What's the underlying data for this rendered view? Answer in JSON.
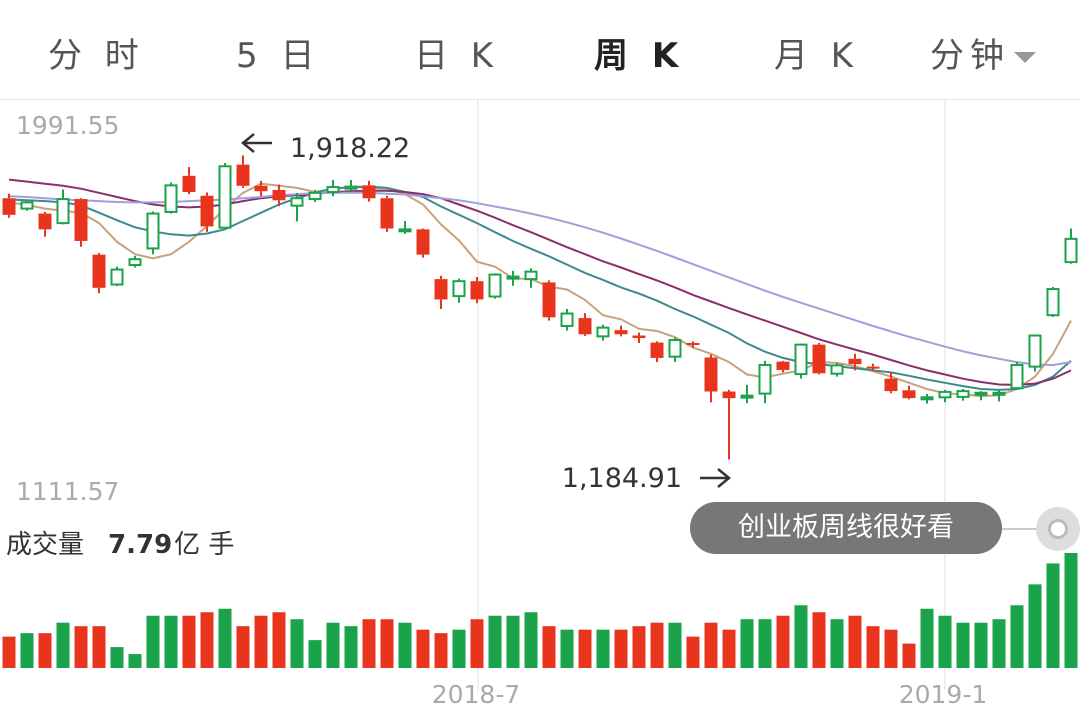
{
  "tabs": [
    {
      "label": "分 时",
      "active": false
    },
    {
      "label": "5 日",
      "active": false
    },
    {
      "label": "日 K",
      "active": false
    },
    {
      "label": "周 K",
      "active": true
    },
    {
      "label": "月 K",
      "active": false
    },
    {
      "label": "分钟",
      "active": false
    }
  ],
  "volume": {
    "label": "成交量",
    "value": "7.79",
    "unit": "亿 手"
  },
  "banner": {
    "text": "创业板周线很好看"
  },
  "colors": {
    "up": "#e8341c",
    "down": "#1aa34a",
    "ma5": "#c8a27a",
    "ma10": "#3d8a8e",
    "ma20": "#8b2f6b",
    "ma60": "#9f9fdc"
  },
  "chart_data": {
    "type": "candlestick",
    "y_max_label": "1991.55",
    "y_min_label": "1111.57",
    "ylim": [
      1111.57,
      1991.55
    ],
    "x_ticks": [
      {
        "label": "2018-7",
        "index": 26.5
      },
      {
        "label": "2019-1",
        "index": 52.5
      }
    ],
    "annotations": [
      {
        "text": "1,918.22",
        "index": 13,
        "value": 1918.22,
        "arrow": "left"
      },
      {
        "text": "1,184.91",
        "index": 40,
        "value": 1184.91,
        "arrow": "right"
      }
    ],
    "candles": [
      [
        1815,
        1775,
        1826,
        1768
      ],
      [
        1790,
        1805,
        1810,
        1785
      ],
      [
        1778,
        1740,
        1782,
        1722
      ],
      [
        1755,
        1813,
        1836,
        1752
      ],
      [
        1813,
        1712,
        1815,
        1698
      ],
      [
        1679,
        1599,
        1683,
        1586
      ],
      [
        1607,
        1643,
        1650,
        1603
      ],
      [
        1654,
        1668,
        1676,
        1648
      ],
      [
        1694,
        1778,
        1783,
        1680
      ],
      [
        1782,
        1846,
        1853,
        1778
      ],
      [
        1869,
        1830,
        1890,
        1825
      ],
      [
        1821,
        1747,
        1829,
        1734
      ],
      [
        1744,
        1892,
        1900,
        1740
      ],
      [
        1896,
        1845,
        1918.22,
        1840
      ],
      [
        1845,
        1832,
        1857,
        1820
      ],
      [
        1835,
        1810,
        1848,
        1796
      ],
      [
        1797,
        1815,
        1827,
        1759
      ],
      [
        1813,
        1828,
        1835,
        1806
      ],
      [
        1830,
        1842,
        1859,
        1820
      ],
      [
        1838,
        1843,
        1859,
        1833
      ],
      [
        1846,
        1815,
        1857,
        1807
      ],
      [
        1815,
        1742,
        1821,
        1734
      ],
      [
        1738,
        1740,
        1760,
        1729
      ],
      [
        1740,
        1679,
        1742,
        1672
      ],
      [
        1620,
        1571,
        1628,
        1548
      ],
      [
        1579,
        1615,
        1621,
        1563
      ],
      [
        1615,
        1571,
        1625,
        1562
      ],
      [
        1578,
        1631,
        1634,
        1573
      ],
      [
        1626,
        1626,
        1640,
        1604
      ],
      [
        1620,
        1638,
        1646,
        1599
      ],
      [
        1612,
        1528,
        1617,
        1520
      ],
      [
        1507,
        1537,
        1548,
        1496
      ],
      [
        1526,
        1487,
        1538,
        1483
      ],
      [
        1482,
        1503,
        1510,
        1472
      ],
      [
        1497,
        1487,
        1508,
        1482
      ],
      [
        1484,
        1478,
        1491,
        1466
      ],
      [
        1467,
        1430,
        1470,
        1420
      ],
      [
        1433,
        1473,
        1479,
        1420
      ],
      [
        1466,
        1465,
        1470,
        1455
      ],
      [
        1431,
        1349,
        1438,
        1323
      ],
      [
        1349,
        1333,
        1353,
        1184.91
      ],
      [
        1339,
        1339,
        1365,
        1321
      ],
      [
        1344,
        1413,
        1423,
        1321
      ],
      [
        1421,
        1401,
        1423,
        1395
      ],
      [
        1391,
        1462,
        1464,
        1380
      ],
      [
        1462,
        1393,
        1466,
        1390
      ],
      [
        1392,
        1412,
        1418,
        1385
      ],
      [
        1428,
        1415,
        1440,
        1400
      ],
      [
        1409,
        1405,
        1416,
        1399
      ],
      [
        1380,
        1350,
        1396,
        1345
      ],
      [
        1352,
        1333,
        1363,
        1330
      ],
      [
        1333,
        1335,
        1343,
        1320
      ],
      [
        1335,
        1348,
        1353,
        1323
      ],
      [
        1336,
        1350,
        1355,
        1327
      ],
      [
        1346,
        1346,
        1350,
        1328
      ],
      [
        1346,
        1346,
        1352,
        1325
      ],
      [
        1357,
        1413,
        1420,
        1355
      ],
      [
        1409,
        1484,
        1486,
        1397
      ],
      [
        1533,
        1596,
        1601,
        1529
      ],
      [
        1661,
        1717,
        1742,
        1657
      ]
    ],
    "ma_lines": [
      {
        "name": "MA5",
        "values": [
          1805,
          1799,
          1790,
          1785,
          1780,
          1755,
          1710,
          1680,
          1670,
          1680,
          1710,
          1748,
          1790,
          1828,
          1850,
          1845,
          1840,
          1830,
          1838,
          1842,
          1840,
          1838,
          1825,
          1800,
          1752,
          1713,
          1662,
          1650,
          1622,
          1620,
          1602,
          1595,
          1570,
          1533,
          1523,
          1500,
          1495,
          1480,
          1455,
          1440,
          1420,
          1390,
          1383,
          1392,
          1400,
          1420,
          1418,
          1410,
          1398,
          1385,
          1370,
          1355,
          1345,
          1342,
          1338,
          1340,
          1355,
          1385,
          1440,
          1520
        ]
      },
      {
        "name": "MA10",
        "values": [
          1812,
          1810,
          1808,
          1805,
          1798,
          1780,
          1762,
          1745,
          1735,
          1728,
          1725,
          1730,
          1740,
          1760,
          1780,
          1800,
          1815,
          1828,
          1838,
          1842,
          1843,
          1840,
          1830,
          1818,
          1795,
          1775,
          1755,
          1733,
          1712,
          1693,
          1675,
          1655,
          1635,
          1618,
          1600,
          1585,
          1568,
          1548,
          1530,
          1510,
          1490,
          1465,
          1445,
          1430,
          1420,
          1415,
          1410,
          1405,
          1400,
          1395,
          1387,
          1378,
          1370,
          1362,
          1355,
          1353,
          1355,
          1365,
          1385,
          1423
        ]
      },
      {
        "name": "MA20",
        "values": [
          1860,
          1855,
          1850,
          1845,
          1838,
          1828,
          1818,
          1808,
          1800,
          1795,
          1793,
          1795,
          1800,
          1808,
          1815,
          1820,
          1822,
          1825,
          1830,
          1832,
          1833,
          1833,
          1830,
          1825,
          1815,
          1800,
          1785,
          1768,
          1750,
          1733,
          1715,
          1697,
          1680,
          1663,
          1648,
          1632,
          1617,
          1600,
          1582,
          1566,
          1550,
          1535,
          1520,
          1505,
          1490,
          1475,
          1462,
          1450,
          1438,
          1425,
          1412,
          1400,
          1390,
          1380,
          1372,
          1366,
          1365,
          1368,
          1380,
          1400
        ]
      },
      {
        "name": "MA60",
        "values": [
          1820,
          1818,
          1815,
          1812,
          1810,
          1808,
          1806,
          1805,
          1805,
          1806,
          1808,
          1810,
          1812,
          1815,
          1818,
          1822,
          1825,
          1827,
          1828,
          1828,
          1828,
          1826,
          1824,
          1820,
          1815,
          1810,
          1803,
          1795,
          1787,
          1778,
          1768,
          1757,
          1745,
          1732,
          1718,
          1703,
          1688,
          1672,
          1656,
          1640,
          1624,
          1608,
          1592,
          1577,
          1563,
          1549,
          1535,
          1521,
          1507,
          1494,
          1481,
          1469,
          1457,
          1446,
          1436,
          1428,
          1420,
          1414,
          1413,
          1420
        ]
      }
    ],
    "volume_bars": [
      0.09,
      0.1,
      0.1,
      0.13,
      0.12,
      0.12,
      0.06,
      0.04,
      0.15,
      0.15,
      0.15,
      0.16,
      0.17,
      0.12,
      0.15,
      0.16,
      0.14,
      0.08,
      0.13,
      0.12,
      0.14,
      0.14,
      0.13,
      0.11,
      0.1,
      0.11,
      0.14,
      0.15,
      0.15,
      0.16,
      0.12,
      0.11,
      0.11,
      0.11,
      0.11,
      0.12,
      0.13,
      0.13,
      0.09,
      0.13,
      0.11,
      0.14,
      0.14,
      0.15,
      0.18,
      0.16,
      0.14,
      0.15,
      0.12,
      0.11,
      0.07,
      0.17,
      0.15,
      0.13,
      0.13,
      0.14,
      0.18,
      0.24,
      0.3,
      0.33
    ]
  }
}
